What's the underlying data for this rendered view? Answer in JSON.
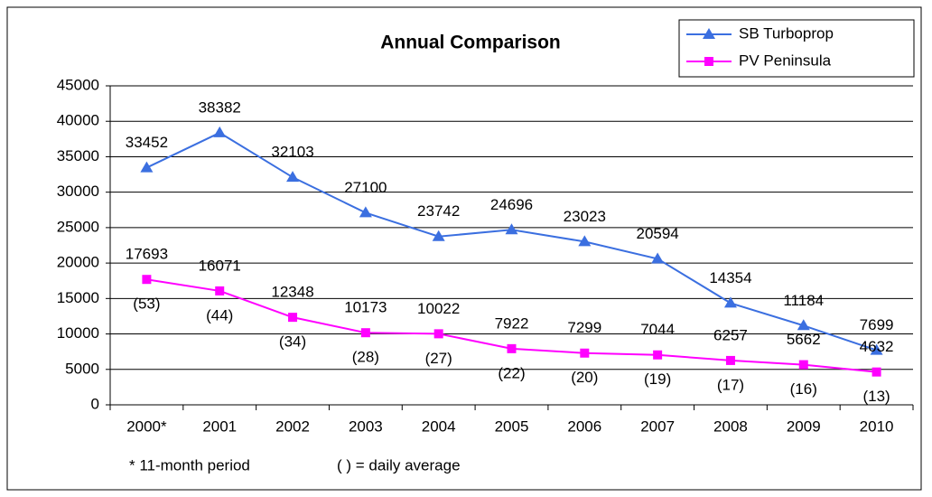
{
  "chart_data": {
    "type": "line",
    "title": "Annual Comparison",
    "categories": [
      "2000*",
      "2001",
      "2002",
      "2003",
      "2004",
      "2005",
      "2006",
      "2007",
      "2008",
      "2009",
      "2010"
    ],
    "series": [
      {
        "name": "SB Turboprop",
        "color": "#3b6fe0",
        "marker": "triangle",
        "values": [
          33452,
          38382,
          32103,
          27100,
          23742,
          24696,
          23023,
          20594,
          14354,
          11184,
          7699
        ]
      },
      {
        "name": "PV Peninsula",
        "color": "#ff00ff",
        "marker": "square",
        "values": [
          17693,
          16071,
          12348,
          10173,
          10022,
          7922,
          7299,
          7044,
          6257,
          5662,
          4632
        ],
        "daily_average_labels": [
          "(53)",
          "(44)",
          "(34)",
          "(28)",
          "(27)",
          "(22)",
          "(20)",
          "(19)",
          "(17)",
          "(16)",
          "(13)"
        ]
      }
    ],
    "ylim": [
      0,
      45000
    ],
    "yticks": [
      0,
      5000,
      10000,
      15000,
      20000,
      25000,
      30000,
      35000,
      40000,
      45000
    ],
    "grid": true,
    "legend": "top-right",
    "annotations": [
      "* 11-month period",
      "( ) = daily average"
    ]
  }
}
